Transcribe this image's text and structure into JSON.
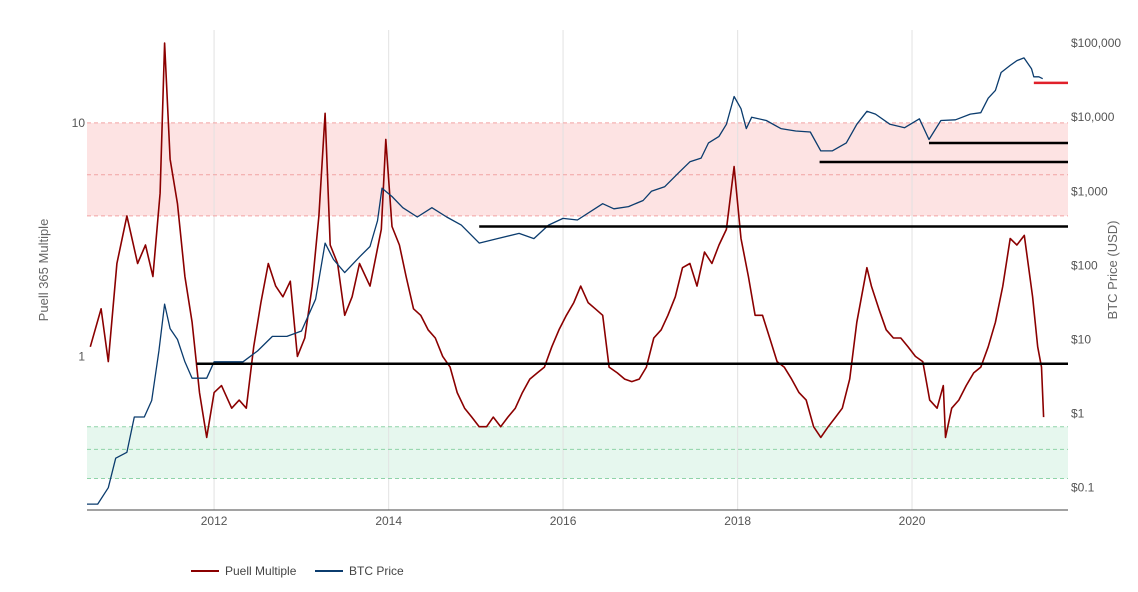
{
  "chart_data": {
    "type": "line",
    "x_axis": {
      "type": "date",
      "range": [
        "2010-07-18",
        "2021-10-15"
      ],
      "tick_labels": [
        "2012",
        "2014",
        "2016",
        "2018",
        "2020"
      ],
      "grid": true
    },
    "y_left": {
      "title": "Puell 365 Multiple",
      "scale": "log",
      "range": [
        0.22,
        25
      ],
      "tick_labels": [
        "1",
        "10"
      ],
      "tick_values": [
        1,
        10
      ]
    },
    "y_right": {
      "title": "BTC Price (USD)",
      "scale": "log",
      "range": [
        0.05,
        150000
      ],
      "tick_labels": [
        "$0.1",
        "$1",
        "$10",
        "$100",
        "$1,000",
        "$10,000",
        "$100,000"
      ],
      "tick_values": [
        0.1,
        1,
        10,
        100,
        1000,
        10000,
        100000
      ]
    },
    "bands": [
      {
        "name": "overvalued-zone",
        "axis": "left",
        "from": 4.0,
        "to": 10.0,
        "color": "#fde3e3"
      },
      {
        "name": "undervalued-zone",
        "axis": "left",
        "from": 0.3,
        "to": 0.5,
        "color": "#e6f7ee"
      }
    ],
    "reference_lines": [
      {
        "axis": "left",
        "value": 10.0,
        "style": "dashed",
        "color": "#f2a3a3"
      },
      {
        "axis": "left",
        "value": 6.0,
        "style": "dashed",
        "color": "#f2a3a3"
      },
      {
        "axis": "left",
        "value": 4.0,
        "style": "dashed",
        "color": "#f2a3a3"
      },
      {
        "axis": "left",
        "value": 0.5,
        "style": "dashed",
        "color": "#8fd3a8"
      },
      {
        "axis": "left",
        "value": 0.4,
        "style": "dashed",
        "color": "#8fd3a8"
      },
      {
        "axis": "left",
        "value": 0.3,
        "style": "dashed",
        "color": "#8fd3a8"
      }
    ],
    "support_lines": [
      {
        "axis": "left",
        "from": "2011-10-20",
        "to": "2021-10-15",
        "value": 0.93,
        "color": "#000000"
      },
      {
        "axis": "left",
        "from": "2015-01-15",
        "to": "2021-10-15",
        "value": 3.6,
        "color": "#000000"
      },
      {
        "axis": "left",
        "from": "2018-12-10",
        "to": "2021-10-15",
        "value": 6.8,
        "color": "#000000"
      },
      {
        "axis": "left",
        "from": "2020-03-12",
        "to": "2021-10-15",
        "value": 8.2,
        "color": "#000000"
      },
      {
        "axis": "right",
        "from": "2021-05-25",
        "to": "2021-10-15",
        "value": 29000,
        "color": "#e0202a"
      }
    ],
    "series": [
      {
        "name": "Puell Multiple",
        "axis": "left",
        "color": "#8b0000",
        "x": [
          "2010-08-01",
          "2010-09-15",
          "2010-10-15",
          "2010-11-20",
          "2011-01-01",
          "2011-02-15",
          "2011-03-20",
          "2011-04-20",
          "2011-05-20",
          "2011-06-08",
          "2011-07-01",
          "2011-08-01",
          "2011-09-01",
          "2011-10-01",
          "2011-11-01",
          "2011-12-01",
          "2012-01-01",
          "2012-02-01",
          "2012-03-15",
          "2012-04-15",
          "2012-05-15",
          "2012-06-15",
          "2012-07-15",
          "2012-08-15",
          "2012-09-15",
          "2012-10-15",
          "2012-11-15",
          "2012-12-15",
          "2013-01-15",
          "2013-02-15",
          "2013-03-15",
          "2013-04-10",
          "2013-05-01",
          "2013-06-01",
          "2013-07-01",
          "2013-08-01",
          "2013-09-01",
          "2013-10-15",
          "2013-12-01",
          "2013-12-20",
          "2014-01-15",
          "2014-02-15",
          "2014-03-15",
          "2014-04-15",
          "2014-05-15",
          "2014-06-15",
          "2014-07-15",
          "2014-08-15",
          "2014-09-15",
          "2014-10-15",
          "2014-11-15",
          "2014-12-15",
          "2015-01-15",
          "2015-02-15",
          "2015-03-15",
          "2015-04-15",
          "2015-05-15",
          "2015-06-15",
          "2015-07-15",
          "2015-08-15",
          "2015-09-15",
          "2015-10-15",
          "2015-11-15",
          "2015-12-15",
          "2016-01-15",
          "2016-02-15",
          "2016-03-15",
          "2016-04-15",
          "2016-05-15",
          "2016-06-15",
          "2016-07-12",
          "2016-08-15",
          "2016-09-15",
          "2016-10-15",
          "2016-11-15",
          "2016-12-15",
          "2017-01-15",
          "2017-02-15",
          "2017-03-15",
          "2017-04-15",
          "2017-05-15",
          "2017-06-15",
          "2017-07-15",
          "2017-08-15",
          "2017-09-15",
          "2017-10-15",
          "2017-11-15",
          "2017-12-17",
          "2018-01-15",
          "2018-02-15",
          "2018-03-15",
          "2018-04-15",
          "2018-05-15",
          "2018-06-15",
          "2018-07-15",
          "2018-08-15",
          "2018-09-15",
          "2018-10-15",
          "2018-11-15",
          "2018-12-15",
          "2019-01-15",
          "2019-02-15",
          "2019-03-15",
          "2019-04-15",
          "2019-05-15",
          "2019-06-26",
          "2019-07-15",
          "2019-08-15",
          "2019-09-15",
          "2019-10-15",
          "2019-11-15",
          "2019-12-15",
          "2020-01-15",
          "2020-02-15",
          "2020-03-15",
          "2020-04-15",
          "2020-05-11",
          "2020-05-20",
          "2020-06-15",
          "2020-07-15",
          "2020-08-15",
          "2020-09-15",
          "2020-10-15",
          "2020-11-15",
          "2020-12-15",
          "2021-01-15",
          "2021-02-15",
          "2021-03-15",
          "2021-04-15",
          "2021-05-01",
          "2021-05-20",
          "2021-06-10",
          "2021-06-26",
          "2021-07-05"
        ],
        "values": [
          1.1,
          1.6,
          0.95,
          2.5,
          4.0,
          2.5,
          3.0,
          2.2,
          5.0,
          22.0,
          7.0,
          4.5,
          2.2,
          1.4,
          0.7,
          0.45,
          0.7,
          0.75,
          0.6,
          0.65,
          0.6,
          1.1,
          1.7,
          2.5,
          2.0,
          1.8,
          2.1,
          1.0,
          1.2,
          2.0,
          4.0,
          11.0,
          3.0,
          2.5,
          1.5,
          1.8,
          2.5,
          2.0,
          3.5,
          8.5,
          3.6,
          3.0,
          2.2,
          1.6,
          1.5,
          1.3,
          1.2,
          1.0,
          0.9,
          0.7,
          0.6,
          0.55,
          0.5,
          0.5,
          0.55,
          0.5,
          0.55,
          0.6,
          0.7,
          0.8,
          0.85,
          0.9,
          1.1,
          1.3,
          1.5,
          1.7,
          2.0,
          1.7,
          1.6,
          1.5,
          0.9,
          0.85,
          0.8,
          0.78,
          0.8,
          0.9,
          1.2,
          1.3,
          1.5,
          1.8,
          2.4,
          2.5,
          2.0,
          2.8,
          2.5,
          3.0,
          3.5,
          6.5,
          3.2,
          2.2,
          1.5,
          1.5,
          1.2,
          0.95,
          0.9,
          0.8,
          0.7,
          0.65,
          0.5,
          0.45,
          0.5,
          0.55,
          0.6,
          0.8,
          1.4,
          2.4,
          2.0,
          1.6,
          1.3,
          1.2,
          1.2,
          1.1,
          1.0,
          0.95,
          0.65,
          0.6,
          0.75,
          0.45,
          0.6,
          0.65,
          0.75,
          0.85,
          0.9,
          1.1,
          1.4,
          2.0,
          3.2,
          3.0,
          3.3,
          2.5,
          1.8,
          1.1,
          0.9,
          0.55
        ]
      },
      {
        "name": "BTC Price",
        "axis": "right",
        "color": "#0b3c6e",
        "x": [
          "2010-07-18",
          "2010-09-01",
          "2010-10-15",
          "2010-11-15",
          "2011-01-01",
          "2011-02-01",
          "2011-03-15",
          "2011-04-15",
          "2011-05-15",
          "2011-06-08",
          "2011-07-01",
          "2011-08-01",
          "2011-09-01",
          "2011-10-01",
          "2011-11-01",
          "2011-12-01",
          "2012-01-01",
          "2012-03-01",
          "2012-05-01",
          "2012-07-01",
          "2012-09-01",
          "2012-11-01",
          "2013-01-01",
          "2013-03-01",
          "2013-04-10",
          "2013-05-15",
          "2013-07-01",
          "2013-09-01",
          "2013-10-15",
          "2013-11-15",
          "2013-12-04",
          "2014-01-15",
          "2014-03-01",
          "2014-05-01",
          "2014-07-01",
          "2014-09-01",
          "2014-11-01",
          "2015-01-15",
          "2015-04-01",
          "2015-07-01",
          "2015-09-01",
          "2015-11-01",
          "2016-01-01",
          "2016-03-01",
          "2016-06-15",
          "2016-08-01",
          "2016-10-01",
          "2016-12-01",
          "2017-01-05",
          "2017-03-01",
          "2017-05-01",
          "2017-06-15",
          "2017-08-01",
          "2017-09-01",
          "2017-10-15",
          "2017-11-15",
          "2017-12-17",
          "2018-01-15",
          "2018-02-06",
          "2018-03-01",
          "2018-05-01",
          "2018-07-01",
          "2018-09-01",
          "2018-11-01",
          "2018-12-15",
          "2019-02-01",
          "2019-04-01",
          "2019-05-15",
          "2019-06-26",
          "2019-08-01",
          "2019-10-01",
          "2019-12-01",
          "2020-02-01",
          "2020-03-12",
          "2020-05-01",
          "2020-07-01",
          "2020-09-01",
          "2020-10-15",
          "2020-11-15",
          "2020-12-15",
          "2021-01-08",
          "2021-02-15",
          "2021-03-15",
          "2021-04-14",
          "2021-05-15",
          "2021-05-25",
          "2021-06-15",
          "2021-07-01"
        ],
        "values": [
          0.06,
          0.06,
          0.1,
          0.25,
          0.3,
          0.9,
          0.9,
          1.5,
          7,
          30,
          14,
          10,
          5,
          3,
          3,
          3,
          5,
          5,
          5,
          7,
          11,
          11,
          13,
          35,
          200,
          120,
          80,
          130,
          180,
          400,
          1100,
          850,
          600,
          450,
          600,
          450,
          350,
          200,
          230,
          270,
          230,
          350,
          430,
          410,
          680,
          580,
          620,
          750,
          1000,
          1150,
          1800,
          2500,
          2800,
          4500,
          5500,
          8000,
          19000,
          13000,
          7000,
          10000,
          9000,
          7000,
          6500,
          6300,
          3500,
          3500,
          4500,
          8000,
          12000,
          11000,
          8000,
          7200,
          9500,
          5000,
          9000,
          9200,
          11000,
          11500,
          18000,
          23000,
          40000,
          50000,
          58000,
          63000,
          45000,
          35000,
          35000,
          33000
        ]
      }
    ],
    "legend": {
      "position": "bottom-left",
      "entries": [
        "Puell Multiple",
        "BTC Price"
      ]
    }
  }
}
